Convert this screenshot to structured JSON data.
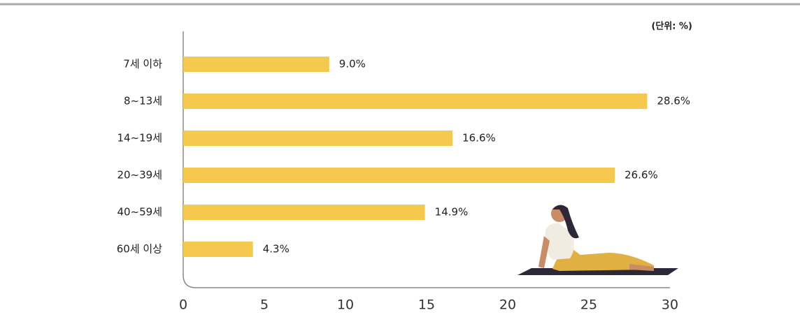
{
  "chart_data": {
    "type": "bar",
    "orientation": "horizontal",
    "unit_label": "(단위: %)",
    "categories": [
      "7세 이하",
      "8~13세",
      "14~19세",
      "20~39세",
      "40~59세",
      "60세 이상"
    ],
    "values": [
      9.0,
      28.6,
      16.6,
      26.6,
      14.9,
      4.3
    ],
    "value_labels": [
      "9.0%",
      "28.6%",
      "16.6%",
      "26.6%",
      "14.9%",
      "4.3%"
    ],
    "color": "#f5c94e",
    "xlim": [
      0,
      30
    ],
    "xticks": [
      0,
      5,
      10,
      15,
      20,
      25,
      30
    ],
    "grid": false
  }
}
